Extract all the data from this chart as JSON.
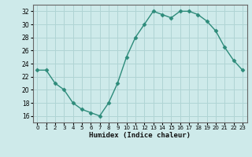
{
  "x": [
    0,
    1,
    2,
    3,
    4,
    5,
    6,
    7,
    8,
    9,
    10,
    11,
    12,
    13,
    14,
    15,
    16,
    17,
    18,
    19,
    20,
    21,
    22,
    23
  ],
  "y": [
    23,
    23,
    21,
    20,
    18,
    17,
    16.5,
    16,
    18,
    21,
    25,
    28,
    30,
    32,
    31.5,
    31,
    32,
    32,
    31.5,
    30.5,
    29,
    26.5,
    24.5,
    23
  ],
  "line_color": "#2d8b7a",
  "marker": "D",
  "marker_size": 2.5,
  "bg_color": "#ceeaea",
  "grid_color": "#b0d4d4",
  "xlabel": "Humidex (Indice chaleur)",
  "ylim": [
    15,
    33
  ],
  "xlim": [
    -0.5,
    23.5
  ],
  "yticks": [
    16,
    18,
    20,
    22,
    24,
    26,
    28,
    30,
    32
  ],
  "xticks": [
    0,
    1,
    2,
    3,
    4,
    5,
    6,
    7,
    8,
    9,
    10,
    11,
    12,
    13,
    14,
    15,
    16,
    17,
    18,
    19,
    20,
    21,
    22,
    23
  ]
}
